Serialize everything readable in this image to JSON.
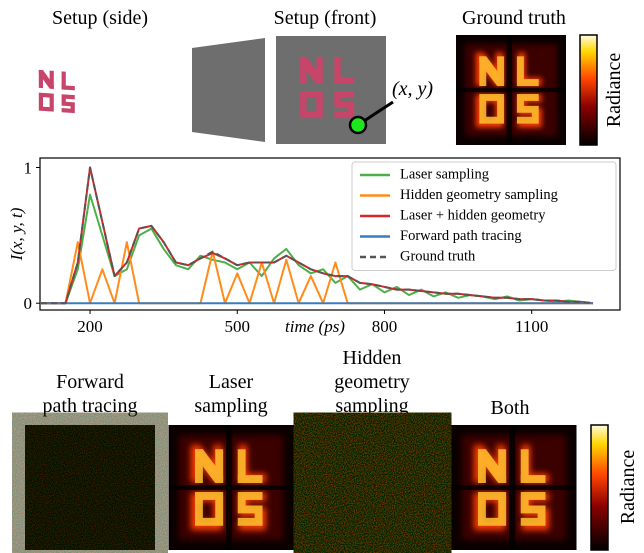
{
  "figure": {
    "top_labels": [
      "Setup (side)",
      "Setup (front)",
      "Ground truth"
    ],
    "point_label": "(x, y)",
    "colorbar_top": "Radiance",
    "bottom_labels": [
      [
        "Forward",
        "path tracing"
      ],
      [
        "Laser",
        "sampling"
      ],
      [
        "Hidden",
        "geometry",
        "sampling"
      ],
      [
        "Both"
      ]
    ],
    "colorbar_bottom": "Radiance"
  },
  "chart_data": {
    "type": "line",
    "ylabel": "I(x, y, t)",
    "xlabel": "time (ps)",
    "x": [
      100,
      125,
      150,
      175,
      200,
      225,
      250,
      275,
      300,
      325,
      350,
      375,
      400,
      425,
      450,
      475,
      500,
      525,
      550,
      575,
      600,
      625,
      650,
      675,
      700,
      725,
      750,
      775,
      800,
      825,
      850,
      875,
      900,
      925,
      950,
      975,
      1000,
      1025,
      1050,
      1075,
      1100,
      1125,
      1150,
      1175,
      1200,
      1225
    ],
    "series": [
      {
        "name": "Laser sampling",
        "color": "#4daf4a",
        "values": [
          0,
          0,
          0,
          0.25,
          0.8,
          0.5,
          0.2,
          0.25,
          0.5,
          0.55,
          0.4,
          0.28,
          0.25,
          0.35,
          0.32,
          0.3,
          0.25,
          0.3,
          0.2,
          0.33,
          0.4,
          0.28,
          0.22,
          0.25,
          0.15,
          0.2,
          0.1,
          0.14,
          0.08,
          0.12,
          0.06,
          0.1,
          0.05,
          0.08,
          0.04,
          0.06,
          0.05,
          0.03,
          0.05,
          0.02,
          0.03,
          0.02,
          0.01,
          0.02,
          0.01,
          0
        ]
      },
      {
        "name": "Hidden geometry sampling",
        "color": "#ff8c1a",
        "values": [
          0,
          0,
          0,
          0.45,
          0,
          0.25,
          0,
          0.45,
          0,
          0,
          0,
          0,
          0,
          0,
          0.38,
          0,
          0.22,
          0,
          0.3,
          0,
          0.32,
          0,
          0.2,
          0,
          0.3,
          0,
          0,
          0,
          0,
          0,
          0,
          0,
          0,
          0,
          0,
          0,
          0,
          0,
          0,
          0,
          0,
          0,
          0,
          0,
          0,
          0
        ]
      },
      {
        "name": "Laser + hidden geometry",
        "color": "#d62728",
        "values": [
          0,
          0,
          0,
          0.3,
          1.0,
          0.6,
          0.2,
          0.3,
          0.55,
          0.57,
          0.45,
          0.3,
          0.28,
          0.33,
          0.37,
          0.33,
          0.28,
          0.3,
          0.3,
          0.3,
          0.35,
          0.3,
          0.25,
          0.22,
          0.2,
          0.2,
          0.15,
          0.14,
          0.12,
          0.1,
          0.1,
          0.09,
          0.08,
          0.07,
          0.07,
          0.06,
          0.05,
          0.04,
          0.04,
          0.03,
          0.03,
          0.02,
          0.02,
          0.01,
          0.01,
          0
        ]
      },
      {
        "name": "Forward path tracing",
        "color": "#3a7dbf",
        "values": [
          0,
          0,
          0,
          0,
          0,
          0,
          0,
          0,
          0,
          0,
          0,
          0,
          0,
          0,
          0,
          0,
          0,
          0,
          0,
          0,
          0,
          0,
          0,
          0,
          0,
          0,
          0,
          0,
          0,
          0,
          0,
          0,
          0,
          0,
          0,
          0,
          0,
          0,
          0,
          0,
          0,
          0,
          0,
          0,
          0,
          0
        ]
      },
      {
        "name": "Ground truth",
        "color": "#555555",
        "dashed": true,
        "values": [
          0,
          0,
          0,
          0.3,
          1.0,
          0.6,
          0.2,
          0.3,
          0.55,
          0.57,
          0.45,
          0.3,
          0.28,
          0.33,
          0.38,
          0.33,
          0.28,
          0.3,
          0.3,
          0.3,
          0.35,
          0.3,
          0.25,
          0.22,
          0.2,
          0.2,
          0.15,
          0.14,
          0.12,
          0.1,
          0.1,
          0.09,
          0.08,
          0.07,
          0.07,
          0.06,
          0.05,
          0.04,
          0.04,
          0.03,
          0.03,
          0.02,
          0.02,
          0.01,
          0.01,
          0
        ]
      }
    ],
    "xlim": [
      98,
      1280
    ],
    "ylim": [
      -0.05,
      1.07
    ],
    "xticks": [
      200,
      500,
      800,
      1100
    ],
    "yticks": [
      0,
      1
    ],
    "grid": false,
    "legend": "upper right"
  }
}
